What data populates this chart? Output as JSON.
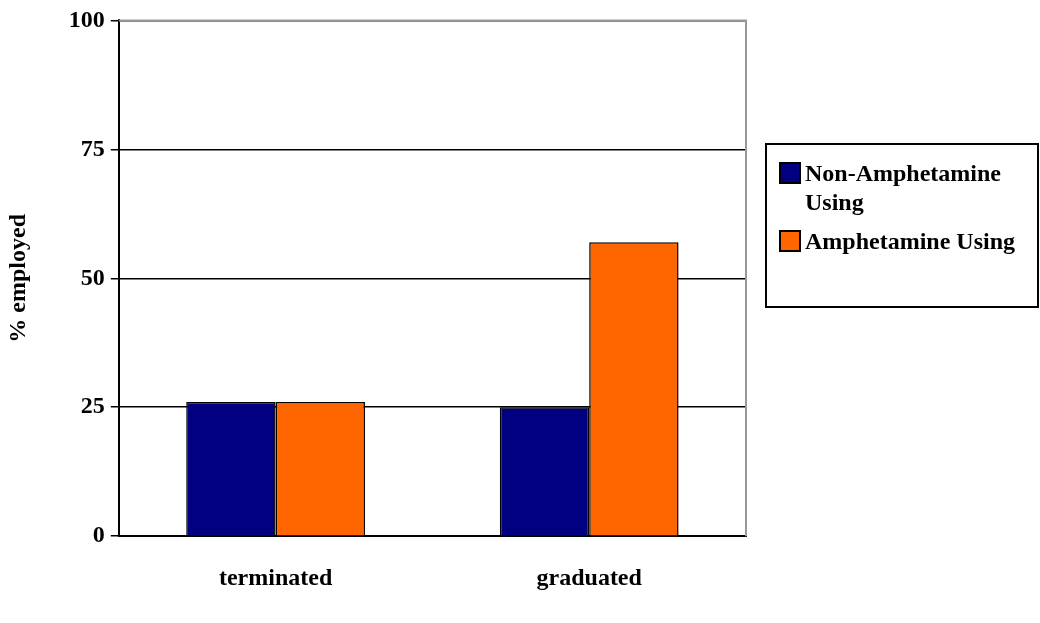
{
  "chart_data": {
    "type": "bar",
    "ylabel": "% employed",
    "categories": [
      "terminated",
      "graduated"
    ],
    "series": [
      {
        "name": "Non-Amphetamine Using",
        "color": "#000080",
        "values": [
          26,
          25
        ]
      },
      {
        "name": "Amphetamine Using",
        "color": "#ff6600",
        "values": [
          26,
          57
        ]
      }
    ],
    "ylim": [
      0,
      100
    ],
    "yticks": [
      0,
      25,
      50,
      75,
      100
    ],
    "grid": "y",
    "legend": "right"
  }
}
